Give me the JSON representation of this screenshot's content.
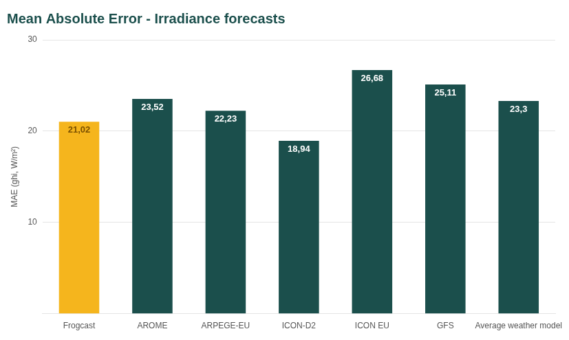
{
  "chart_data": {
    "type": "bar",
    "title": "Mean Absolute Error - Irradiance forecasts",
    "categories": [
      "Frogcast",
      "AROME",
      "ARPEGE-EU",
      "ICON-D2",
      "ICON EU",
      "GFS",
      "Average weather model"
    ],
    "values": [
      21.02,
      23.52,
      22.23,
      18.94,
      26.68,
      25.11,
      23.3
    ],
    "value_labels": [
      "21,02",
      "23,52",
      "22,23",
      "18,94",
      "26,68",
      "25,11",
      "23,3"
    ],
    "colors": [
      "#F5B51D",
      "#1B4F4C",
      "#1B4F4C",
      "#1B4F4C",
      "#1B4F4C",
      "#1B4F4C",
      "#1B4F4C"
    ],
    "ylabel": "MAE (ghi, W/m²)",
    "ylim": [
      0,
      30
    ],
    "yticks": [
      10,
      20,
      30
    ],
    "grid": true,
    "data_labels": true
  }
}
